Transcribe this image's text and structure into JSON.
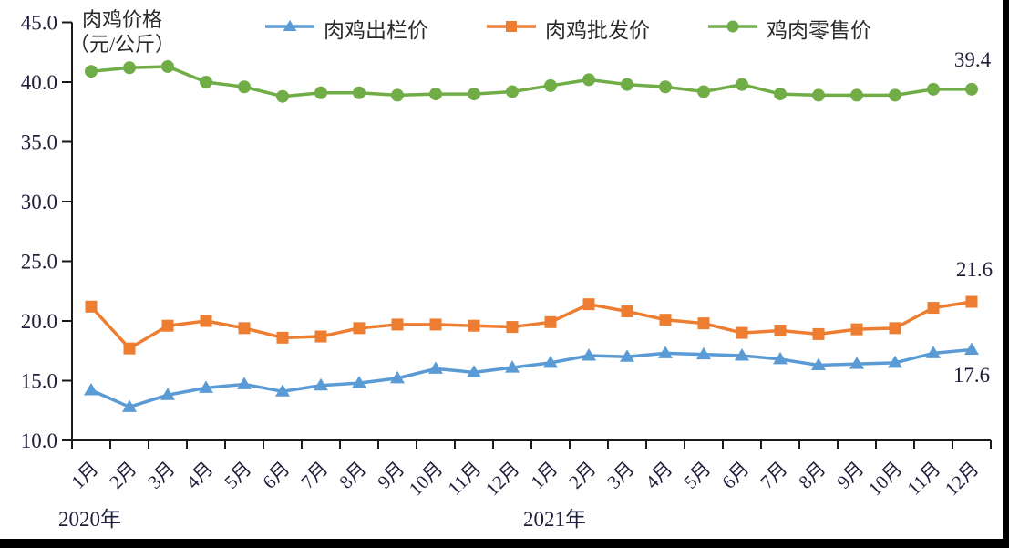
{
  "title": {
    "line1": "肉鸡价格",
    "line2": "（元/公斤）"
  },
  "legend": {
    "items": [
      {
        "label": "肉鸡出栏价",
        "color": "#5B9BD5",
        "marker": "triangle"
      },
      {
        "label": "肉鸡批发价",
        "color": "#ED7D31",
        "marker": "square"
      },
      {
        "label": "鸡肉零售价",
        "color": "#70AD47",
        "marker": "circle"
      }
    ]
  },
  "chart_data": {
    "type": "line",
    "title": "肉鸡价格（元/公斤）",
    "ylabel": "元/公斤",
    "ylim": [
      10,
      45
    ],
    "ytick_interval": 5,
    "ytick_labels": [
      "45.0",
      "40.0",
      "35.0",
      "30.0",
      "25.0",
      "20.0",
      "15.0",
      "10.0"
    ],
    "grid": false,
    "legend_position": "top",
    "categories": [
      "1月",
      "2月",
      "3月",
      "4月",
      "5月",
      "6月",
      "7月",
      "8月",
      "9月",
      "10月",
      "11月",
      "12月",
      "1月",
      "2月",
      "3月",
      "4月",
      "5月",
      "6月",
      "7月",
      "8月",
      "9月",
      "10月",
      "11月",
      "12月"
    ],
    "year_labels": [
      "2020年",
      "2021年"
    ],
    "series": [
      {
        "name": "肉鸡出栏价",
        "color": "#5B9BD5",
        "marker": "triangle",
        "values": [
          14.2,
          12.8,
          13.8,
          14.4,
          14.7,
          14.1,
          14.6,
          14.8,
          15.2,
          16.0,
          15.7,
          16.1,
          16.5,
          17.1,
          17.0,
          17.3,
          17.2,
          17.1,
          16.8,
          16.3,
          16.4,
          16.5,
          17.3,
          17.6
        ]
      },
      {
        "name": "肉鸡批发价",
        "color": "#ED7D31",
        "marker": "square",
        "values": [
          21.2,
          17.7,
          19.6,
          20.0,
          19.4,
          18.6,
          18.7,
          19.4,
          19.7,
          19.7,
          19.6,
          19.5,
          19.9,
          21.4,
          20.8,
          20.1,
          19.8,
          19.0,
          19.2,
          18.9,
          19.3,
          19.4,
          21.1,
          21.6
        ]
      },
      {
        "name": "鸡肉零售价",
        "color": "#70AD47",
        "marker": "circle",
        "values": [
          40.9,
          41.2,
          41.3,
          40.0,
          39.6,
          38.8,
          39.1,
          39.1,
          38.9,
          39.0,
          39.0,
          39.2,
          39.7,
          40.2,
          39.8,
          39.6,
          39.2,
          39.8,
          39.0,
          38.9,
          38.9,
          38.9,
          39.4,
          39.4
        ]
      }
    ],
    "end_labels": [
      {
        "series": "鸡肉零售价",
        "text": "39.4"
      },
      {
        "series": "肉鸡批发价",
        "text": "21.6"
      },
      {
        "series": "肉鸡出栏价",
        "text": "17.6"
      }
    ]
  },
  "colors": {
    "background": "#ffffff",
    "axis": "#1a1a1a",
    "text": "#1f1f3c",
    "frame_bars": "#000000"
  }
}
